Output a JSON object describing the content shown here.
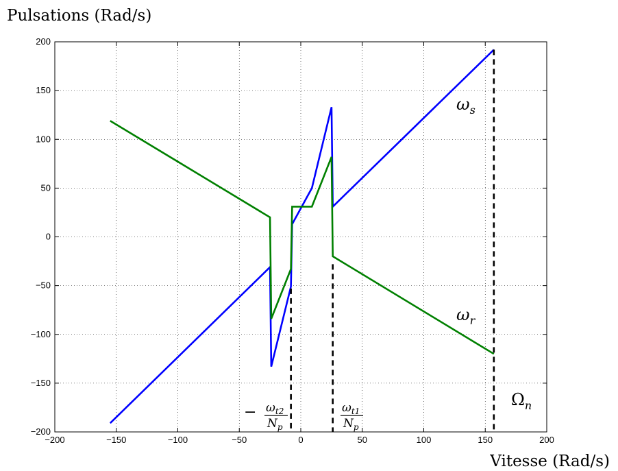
{
  "chart_data": {
    "type": "line",
    "ylabel": "Pulsations (Rad/s)",
    "xlabel": "Vitesse (Rad/s)",
    "xlim": [
      -200,
      200
    ],
    "ylim": [
      -200,
      200
    ],
    "xticks": [
      -200,
      -150,
      -100,
      -50,
      0,
      50,
      100,
      150,
      200
    ],
    "yticks": [
      -200,
      -150,
      -100,
      -50,
      0,
      50,
      100,
      150,
      200
    ],
    "grid": true,
    "series": [
      {
        "label": "ωs",
        "color": "#0000ff",
        "x": [
          -155,
          -25,
          -24,
          -8,
          -7,
          9,
          25,
          26,
          157
        ],
        "y": [
          -191,
          -31,
          -133,
          -51,
          13,
          50,
          133,
          31,
          192
        ]
      },
      {
        "label": "ωr",
        "color": "#008000",
        "x": [
          -155,
          -25,
          -24,
          -8,
          -7,
          9,
          25,
          26,
          157
        ],
        "y": [
          119,
          20,
          -84,
          -33,
          31,
          31,
          82,
          -20,
          -120
        ]
      }
    ],
    "vlines": [
      {
        "x": -8,
        "y_top": -53
      },
      {
        "x": 26,
        "y_top": -28
      },
      {
        "x": 157,
        "y_top": 192
      }
    ],
    "annotations": {
      "omega_s": {
        "base": "ω",
        "sub": "s"
      },
      "omega_r": {
        "base": "ω",
        "sub": "r"
      },
      "omega_t2": {
        "prefix": "−",
        "num_base": "ω",
        "num_sub": "t2",
        "den_base": "N",
        "den_sub": "p"
      },
      "omega_t1": {
        "num_base": "ω",
        "num_sub": "t1",
        "den_base": "N",
        "den_sub": "p"
      },
      "omega_n": {
        "base": "Ω",
        "sub": "n"
      }
    }
  }
}
